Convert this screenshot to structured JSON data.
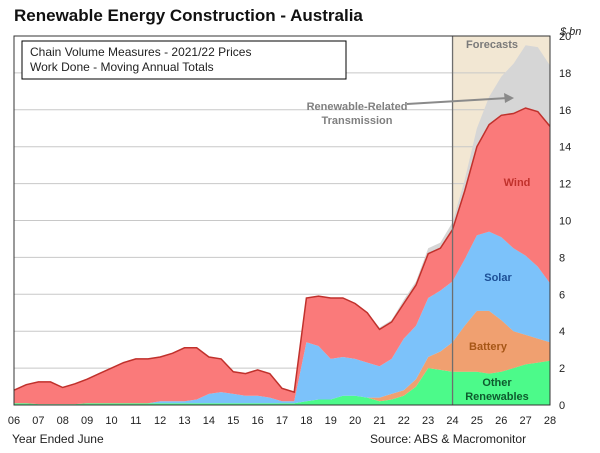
{
  "chart_data": {
    "type": "area",
    "title": "Renewable Energy Construction - Australia",
    "subtitle_lines": [
      "Chain Volume Measures - 2021/22 Prices",
      "Work Done - Moving Annual Totals"
    ],
    "xlabel": "Year Ended June",
    "ylabel": "$ bn",
    "source": "Source: ABS & Macromonitor",
    "stacked": true,
    "x_tick_labels": [
      "06",
      "07",
      "08",
      "09",
      "10",
      "11",
      "12",
      "13",
      "14",
      "15",
      "16",
      "17",
      "18",
      "19",
      "20",
      "21",
      "22",
      "23",
      "24",
      "25",
      "26",
      "27",
      "28"
    ],
    "x_range": [
      6,
      28
    ],
    "y_range": [
      0,
      20
    ],
    "y_ticks": [
      0,
      2,
      4,
      6,
      8,
      10,
      12,
      14,
      16,
      18,
      20
    ],
    "forecast_band": {
      "label": "Forecasts",
      "start": 24,
      "end": 28
    },
    "x": [
      6,
      6.5,
      7,
      7.5,
      8,
      8.5,
      9,
      9.5,
      10,
      10.5,
      11,
      11.5,
      12,
      12.5,
      13,
      13.5,
      14,
      14.5,
      15,
      15.5,
      16,
      16.5,
      17,
      17.5,
      18,
      18.5,
      19,
      19.5,
      20,
      20.5,
      21,
      21.5,
      22,
      22.5,
      23,
      23.5,
      24,
      24.5,
      25,
      25.5,
      26,
      26.5,
      27,
      27.5,
      28
    ],
    "series": [
      {
        "name": "Other Renewables",
        "color": "#4cfa8a",
        "values": [
          0.1,
          0.1,
          0.05,
          0.05,
          0.05,
          0.05,
          0.1,
          0.1,
          0.1,
          0.1,
          0.1,
          0.1,
          0.1,
          0.1,
          0.1,
          0.1,
          0.1,
          0.1,
          0.1,
          0.1,
          0.1,
          0.1,
          0.1,
          0.1,
          0.2,
          0.3,
          0.3,
          0.5,
          0.5,
          0.4,
          0.2,
          0.3,
          0.5,
          1.0,
          2.0,
          1.9,
          1.8,
          1.8,
          1.8,
          1.7,
          1.8,
          2.0,
          2.2,
          2.3,
          2.4
        ]
      },
      {
        "name": "Battery",
        "color": "#f0a070",
        "values": [
          0,
          0,
          0,
          0,
          0,
          0,
          0,
          0,
          0,
          0,
          0,
          0,
          0,
          0,
          0,
          0,
          0,
          0,
          0,
          0,
          0,
          0,
          0,
          0,
          0,
          0,
          0,
          0,
          0,
          0,
          0.2,
          0.3,
          0.3,
          0.4,
          0.6,
          1.0,
          1.6,
          2.5,
          3.3,
          3.4,
          2.8,
          2.0,
          1.6,
          1.3,
          1.0
        ]
      },
      {
        "name": "Solar",
        "color": "#7cc2fa",
        "values": [
          0,
          0,
          0,
          0,
          0,
          0,
          0,
          0,
          0,
          0,
          0,
          0,
          0.1,
          0.1,
          0.1,
          0.2,
          0.5,
          0.6,
          0.5,
          0.4,
          0.4,
          0.3,
          0.1,
          0.1,
          3.2,
          2.9,
          2.2,
          2.1,
          2.0,
          1.9,
          1.7,
          1.9,
          2.8,
          2.9,
          3.2,
          3.3,
          3.3,
          3.6,
          4.1,
          4.3,
          4.5,
          4.5,
          4.3,
          3.9,
          3.2
        ]
      },
      {
        "name": "Wind",
        "color": "#fa7a7a",
        "values": [
          0.7,
          1.0,
          1.2,
          1.2,
          0.9,
          1.1,
          1.3,
          1.6,
          1.9,
          2.2,
          2.4,
          2.4,
          2.4,
          2.6,
          2.9,
          2.8,
          2.0,
          1.8,
          1.2,
          1.2,
          1.4,
          1.3,
          0.7,
          0.5,
          2.4,
          2.7,
          3.3,
          3.2,
          3.0,
          2.7,
          2.0,
          2.0,
          1.9,
          2.2,
          2.4,
          2.3,
          2.8,
          3.7,
          4.8,
          5.8,
          6.6,
          7.3,
          8.0,
          8.4,
          8.5
        ]
      },
      {
        "name": "Renewable-Related Transmission",
        "color": "#d6d6d6",
        "values": [
          0,
          0,
          0,
          0,
          0,
          0,
          0,
          0,
          0,
          0,
          0,
          0,
          0,
          0,
          0,
          0,
          0,
          0,
          0,
          0,
          0,
          0,
          0,
          0,
          0,
          0,
          0,
          0,
          0,
          0,
          0.1,
          0.1,
          0.2,
          0.2,
          0.3,
          0.3,
          0.4,
          0.6,
          1.0,
          1.5,
          2.1,
          2.7,
          3.4,
          3.5,
          3.3
        ]
      }
    ],
    "series_labels": [
      "Other\nRenewables",
      "Battery",
      "Solar",
      "Wind",
      "Renewable-Related\nTransmission"
    ],
    "grid": true,
    "legend": "inline labels"
  }
}
